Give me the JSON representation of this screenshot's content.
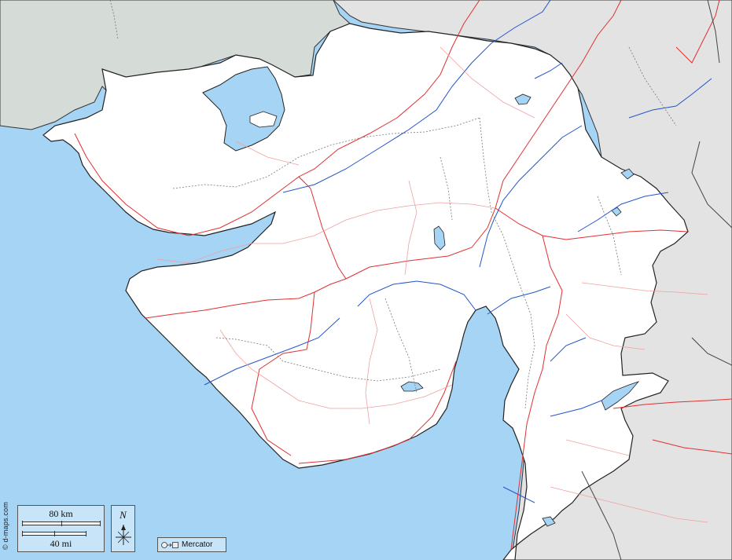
{
  "credit": "© d-maps.com",
  "scale": {
    "km_label": "80 km",
    "mi_label": "40 mi"
  },
  "north": {
    "letter": "N"
  },
  "projection": {
    "label": "Mercator"
  },
  "colors": {
    "sea": "#a6d4f5",
    "land_focus": "#ffffff",
    "land_neighbor": "#e3e3e3",
    "foreign_land": "#d5dcd8",
    "lakes": "#a6d4f5",
    "rivers": "#2255cc",
    "main_roads": "#e03030",
    "minor_roads": "#f0a0a0",
    "railways": "#777777"
  }
}
